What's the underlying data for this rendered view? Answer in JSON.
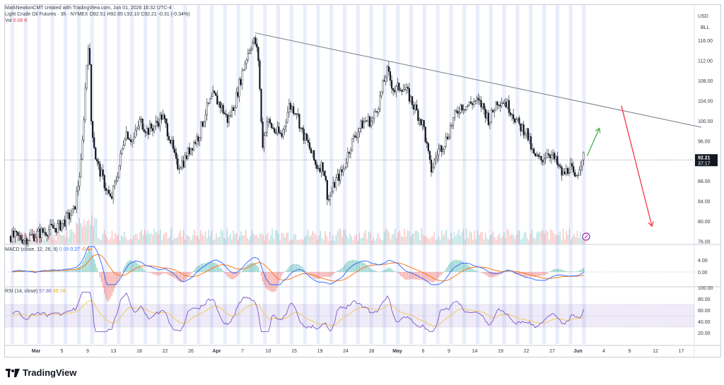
{
  "header": {
    "created_by": "MarkNewtonCMT created with TradingView.com, Jun 01, 2026 16:32 UTC-4",
    "symbol": "Light Crude Oil Futures · 3h · NYMEX",
    "ohlc": "O92.51 H92.65 L92.10 C92.21 -0.31 (-0.34%)",
    "vol_label": "Vol",
    "vol_value": "6.06 K",
    "currency": "USD",
    "unit": "BLL"
  },
  "macd_legend": {
    "label": "MACD (close, 12, 26, 9)",
    "v1": "0.08",
    "v2": "0.27",
    "v3": "-0.44"
  },
  "rsi_legend": {
    "label": "RSI (14, close)",
    "v1": "57.86",
    "v2": "45.74"
  },
  "price_tag": {
    "price": "92.21",
    "countdown": "37:17"
  },
  "branding": "TradingView",
  "colors": {
    "up": "#26a69a",
    "down": "#ef5350",
    "trendline": "#787b86",
    "green_arrow": "#4caf50",
    "red_arrow": "#f23645",
    "macd": "#2962ff",
    "signal": "#ff6d00",
    "rsi": "#7e57c2",
    "rsi_ma": "#f2c94c",
    "session_band": "#e3e8fb"
  },
  "chart_data": {
    "type": "candlestick",
    "title": "Light Crude Oil Futures · 3h · NYMEX",
    "price_axis": {
      "ticks": [
        "116.00",
        "112.00",
        "108.00",
        "104.00",
        "100.00",
        "96.00",
        "92.00",
        "88.00",
        "84.00",
        "80.00",
        "76.00"
      ],
      "ylim": [
        75.5,
        118
      ]
    },
    "macd_axis": {
      "ticks": [
        "4.00",
        "0.00"
      ]
    },
    "rsi_axis": {
      "ticks": [
        "100.00",
        "80.00",
        "60.00",
        "40.00",
        "20.00"
      ],
      "band": [
        30,
        70
      ]
    },
    "x_ticks": [
      "Mar",
      "5",
      "9",
      "13",
      "18",
      "22",
      "26",
      "Apr",
      "7",
      "10",
      "15",
      "19",
      "24",
      "28",
      "May",
      "6",
      "9",
      "14",
      "19",
      "22",
      "27",
      "Jun",
      "4",
      "9",
      "12",
      "17"
    ],
    "price_path": [
      [
        0,
        77
      ],
      [
        12,
        76.5
      ],
      [
        28,
        78
      ],
      [
        40,
        79
      ],
      [
        52,
        82
      ],
      [
        58,
        92
      ],
      [
        62,
        110
      ],
      [
        64,
        117
      ],
      [
        66,
        100
      ],
      [
        70,
        92
      ],
      [
        76,
        88
      ],
      [
        82,
        84
      ],
      [
        88,
        90
      ],
      [
        94,
        98
      ],
      [
        100,
        96
      ],
      [
        106,
        100
      ],
      [
        112,
        98
      ],
      [
        118,
        99
      ],
      [
        124,
        101
      ],
      [
        130,
        97
      ],
      [
        136,
        91
      ],
      [
        142,
        92
      ],
      [
        148,
        95
      ],
      [
        154,
        97
      ],
      [
        160,
        102
      ],
      [
        166,
        105
      ],
      [
        172,
        103
      ],
      [
        178,
        100
      ],
      [
        184,
        104
      ],
      [
        190,
        110
      ],
      [
        196,
        115
      ],
      [
        200,
        116
      ],
      [
        203,
        112
      ],
      [
        206,
        95
      ],
      [
        210,
        100
      ],
      [
        216,
        98
      ],
      [
        222,
        97
      ],
      [
        228,
        103
      ],
      [
        234,
        102
      ],
      [
        238,
        98
      ],
      [
        244,
        95
      ],
      [
        250,
        91
      ],
      [
        256,
        91
      ],
      [
        260,
        84
      ],
      [
        266,
        88
      ],
      [
        272,
        90
      ],
      [
        278,
        95
      ],
      [
        284,
        98
      ],
      [
        290,
        100
      ],
      [
        296,
        100
      ],
      [
        302,
        104
      ],
      [
        308,
        110
      ],
      [
        314,
        106
      ],
      [
        320,
        107
      ],
      [
        326,
        105
      ],
      [
        332,
        102
      ],
      [
        338,
        99
      ],
      [
        344,
        90
      ],
      [
        350,
        94
      ],
      [
        356,
        96
      ],
      [
        362,
        100
      ],
      [
        368,
        103
      ],
      [
        374,
        103
      ],
      [
        380,
        104
      ],
      [
        386,
        103
      ],
      [
        392,
        100
      ],
      [
        398,
        104
      ],
      [
        404,
        104
      ],
      [
        410,
        102
      ],
      [
        416,
        99
      ],
      [
        422,
        98
      ],
      [
        428,
        93
      ],
      [
        434,
        92
      ],
      [
        440,
        94
      ],
      [
        446,
        92
      ],
      [
        452,
        89
      ],
      [
        458,
        91
      ],
      [
        462,
        88
      ],
      [
        468,
        93
      ],
      [
        470,
        92.2
      ]
    ],
    "trendline": {
      "from": [
        200,
        117.5
      ],
      "to": [
        640,
        98.7
      ]
    },
    "projection_up": {
      "from": [
        472,
        93
      ],
      "to": [
        482,
        98.5
      ]
    },
    "projection_down": {
      "from": [
        500,
        103
      ],
      "to": [
        525,
        79
      ]
    },
    "current_price": 92.21
  }
}
